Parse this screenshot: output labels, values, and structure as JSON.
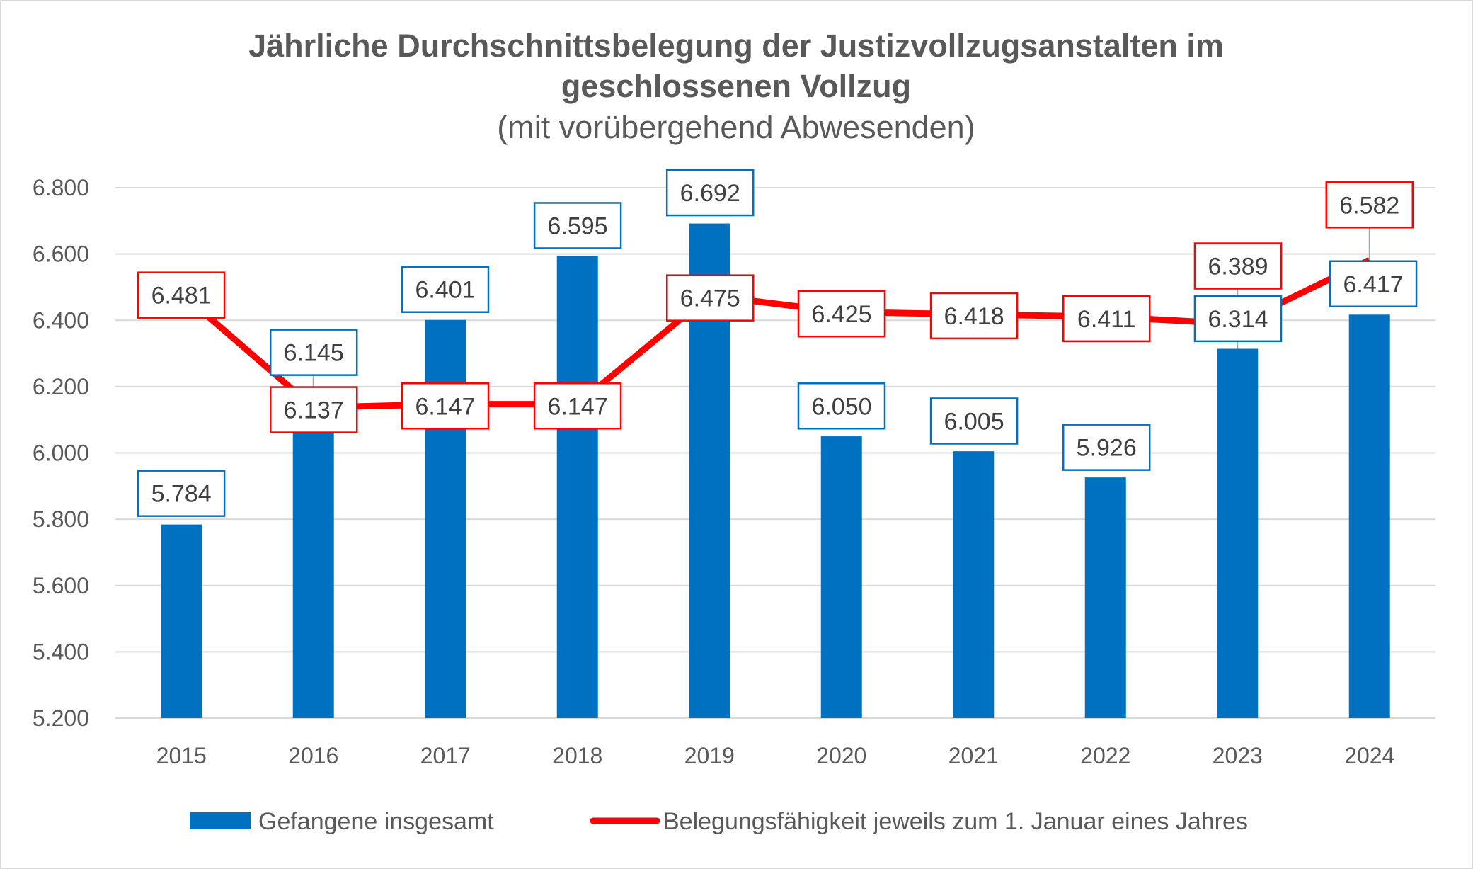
{
  "chart_data": {
    "type": "bar+line",
    "title": "Jährliche Durchschnittsbelegung der Justizvollzugsanstalten im geschlossenen Vollzug",
    "title_lines": [
      "Jährliche Durchschnittsbelegung der Justizvollzugsanstalten im",
      "geschlossenen Vollzug"
    ],
    "subtitle": "(mit vorübergehend Abwesenden)",
    "xlabel": "",
    "ylabel": "",
    "ylim": [
      5200,
      6800
    ],
    "yticks": [
      5200,
      5400,
      5600,
      5800,
      6000,
      6200,
      6400,
      6600,
      6800
    ],
    "ytick_labels": [
      "5.200",
      "5.400",
      "5.600",
      "5.800",
      "6.000",
      "6.200",
      "6.400",
      "6.600",
      "6.800"
    ],
    "grid": true,
    "legend_position": "bottom",
    "categories": [
      "2015",
      "2016",
      "2017",
      "2018",
      "2019",
      "2020",
      "2021",
      "2022",
      "2023",
      "2024"
    ],
    "series": [
      {
        "name": "Gefangene insgesamt",
        "type": "bar",
        "color": "#0070C0",
        "values": [
          5784,
          6145,
          6401,
          6595,
          6692,
          6050,
          6005,
          5926,
          6314,
          6417
        ],
        "labels": [
          "5.784",
          "6.145",
          "6.401",
          "6.595",
          "6.692",
          "6.050",
          "6.005",
          "5.926",
          "6.314",
          "6.417"
        ]
      },
      {
        "name": "Belegungsfähigkeit jeweils zum 1. Januar eines Jahres",
        "type": "line",
        "color": "#FF0000",
        "values": [
          6481,
          6137,
          6147,
          6147,
          6475,
          6425,
          6418,
          6411,
          6389,
          6582
        ],
        "labels": [
          "6.481",
          "6.137",
          "6.147",
          "6.147",
          "6.475",
          "6.425",
          "6.418",
          "6.411",
          "6.389",
          "6.582"
        ]
      }
    ]
  }
}
